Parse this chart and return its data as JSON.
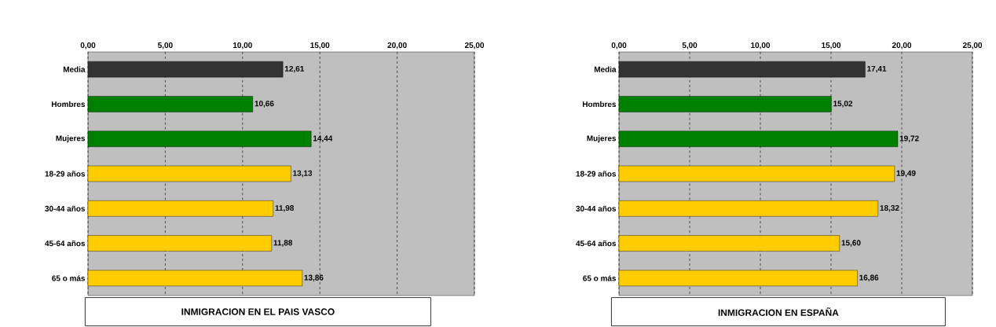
{
  "chart_data": [
    {
      "type": "bar",
      "orientation": "horizontal",
      "title": "INMIGRACION EN EL PAIS VASCO",
      "categories": [
        "Media",
        "Hombres",
        "Mujeres",
        "18-29 años",
        "30-44 años",
        "45-64 años",
        "65 o más"
      ],
      "values": [
        12.61,
        10.66,
        14.44,
        13.13,
        11.98,
        11.88,
        13.86
      ],
      "colors": [
        "#333333",
        "#008000",
        "#008000",
        "#ffcc00",
        "#ffcc00",
        "#ffcc00",
        "#ffcc00"
      ],
      "value_labels": [
        "12,61",
        "10,66",
        "14,44",
        "13,13",
        "11,98",
        "11,88",
        "13,86"
      ],
      "xlim": [
        0,
        25
      ],
      "xticks": [
        {
          "value": 0,
          "label": "0,00"
        },
        {
          "value": 5,
          "label": "5,00"
        },
        {
          "value": 10,
          "label": "10,00"
        },
        {
          "value": 15,
          "label": "15,00"
        },
        {
          "value": 20,
          "label": "20,00"
        },
        {
          "value": 25,
          "label": "25,00"
        }
      ],
      "grid": "x"
    },
    {
      "type": "bar",
      "orientation": "horizontal",
      "title": "INMIGRACION EN ESPAÑA",
      "categories": [
        "Media",
        "Hombres",
        "Mujeres",
        "18-29 años",
        "30-44 años",
        "45-64 años",
        "65 o más"
      ],
      "values": [
        17.41,
        15.02,
        19.72,
        19.49,
        18.32,
        15.6,
        16.86
      ],
      "colors": [
        "#333333",
        "#008000",
        "#008000",
        "#ffcc00",
        "#ffcc00",
        "#ffcc00",
        "#ffcc00"
      ],
      "value_labels": [
        "17,41",
        "15,02",
        "19,72",
        "19,49",
        "18,32",
        "15,60",
        "16,86"
      ],
      "xlim": [
        0,
        25
      ],
      "xticks": [
        {
          "value": 0,
          "label": "0,00"
        },
        {
          "value": 5,
          "label": "5,00"
        },
        {
          "value": 10,
          "label": "10,00"
        },
        {
          "value": 15,
          "label": "15,00"
        },
        {
          "value": 20,
          "label": "20,00"
        },
        {
          "value": 25,
          "label": "25,00"
        }
      ],
      "grid": "x"
    }
  ]
}
